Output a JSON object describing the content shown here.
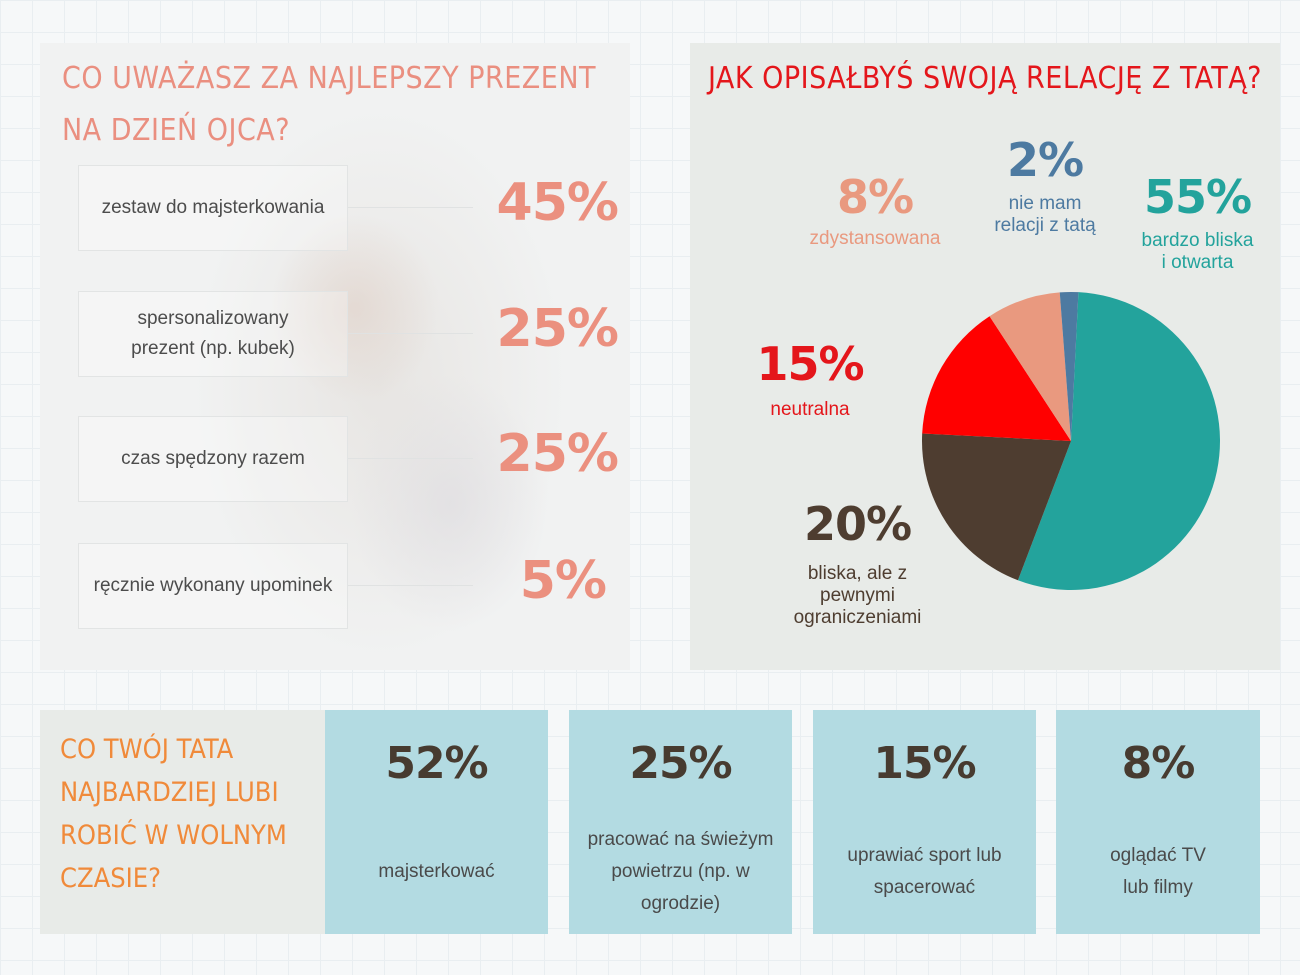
{
  "gift_question": {
    "title": "CO UWAŻASZ ZA NAJLEPSZY PREZENT NA DZIEŃ OJCA?",
    "items": [
      {
        "label": "zestaw do majsterkowania",
        "value_label": "45%"
      },
      {
        "label": "spersonalizowany prezent (np. kubek)",
        "value_label": "25%"
      },
      {
        "label": "czas spędzony razem",
        "value_label": "25%"
      },
      {
        "label": "ręcznie wykonany upominek",
        "value_label": "5%"
      }
    ]
  },
  "relation_question": {
    "title": "JAK OPISAŁBYŚ SWOJĄ RELACJĘ Z TATĄ?"
  },
  "hobby_question": {
    "title": "CO TWÓJ TATA NAJBARDZIEJ LUBI ROBIĆ W WOLNYM CZASIE?",
    "items": [
      {
        "value_label": "52%",
        "label": "majsterkować"
      },
      {
        "value_label": "25%",
        "label": "pracować na świeżym powietrzu (np. w ogrodzie)"
      },
      {
        "value_label": "15%",
        "label": "uprawiać sport lub spacerować"
      },
      {
        "value_label": "8%",
        "label": "oglądać TV lub filmy"
      }
    ]
  },
  "colors": {
    "salmon": "#eb907f",
    "red": "#e4161b",
    "teal": "#23a39c",
    "dark_brown": "#4e3d30",
    "blue": "#4d7aa1",
    "orange": "#f08a3a",
    "light_blue": "#b3dbe2"
  },
  "chart_data": [
    {
      "type": "bar",
      "title": "CO UWAŻASZ ZA NAJLEPSZY PREZENT NA DZIEŃ OJCA?",
      "categories": [
        "zestaw do majsterkowania",
        "spersonalizowany prezent (np. kubek)",
        "czas spędzony razem",
        "ręcznie wykonany upominek"
      ],
      "values": [
        45,
        25,
        25,
        5
      ],
      "unit": "%"
    },
    {
      "type": "pie",
      "title": "JAK OPISAŁBYŚ SWOJĄ RELACJĘ Z TATĄ?",
      "slices": [
        {
          "label": "bardzo bliska i otwarta",
          "value": 55,
          "value_label": "55%",
          "color": "#23a39c"
        },
        {
          "label": "bliska, ale z pewnymi ograniczeniami",
          "value": 20,
          "value_label": "20%",
          "color": "#4e3d30"
        },
        {
          "label": "neutralna",
          "value": 15,
          "value_label": "15%",
          "color": "#ff0000"
        },
        {
          "label": "zdystansowana",
          "value": 8,
          "value_label": "8%",
          "color": "#e9997f"
        },
        {
          "label": "nie mam relacji z tatą",
          "value": 2,
          "value_label": "2%",
          "color": "#4d7aa1"
        }
      ]
    },
    {
      "type": "bar",
      "title": "CO TWÓJ TATA NAJBARDZIEJ LUBI ROBIĆ W WOLNYM CZASIE?",
      "categories": [
        "majsterkować",
        "pracować na świeżym powietrzu (np. w ogrodzie)",
        "uprawiać sport lub spacerować",
        "oglądać TV lub filmy"
      ],
      "values": [
        52,
        25,
        15,
        8
      ],
      "unit": "%"
    }
  ]
}
